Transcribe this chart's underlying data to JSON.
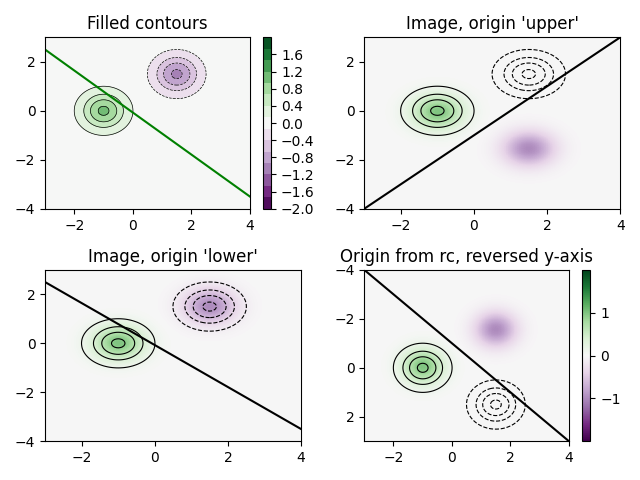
{
  "title_tl": "Filled contours",
  "title_tr": "Image, origin 'upper'",
  "title_bl": "Image, origin 'lower'",
  "title_br": "Origin from rc, reversed y-axis",
  "figsize": [
    6.4,
    4.8
  ],
  "dpi": 100,
  "xlim": [
    -3,
    4
  ],
  "ylim": [
    -4,
    4
  ],
  "cmap": "PRGn",
  "vmin": -2.0,
  "vmax": 2.0,
  "gaussian1_x": -1.0,
  "gaussian1_y": 0.0,
  "gaussian2_x": 1.5,
  "gaussian2_y": 1.5,
  "sigma": 0.5,
  "line_x": [
    -3,
    4
  ],
  "line_y": [
    2.5,
    -4
  ],
  "green_line_x": [
    -3,
    4
  ],
  "green_line_y": [
    2.5,
    -4
  ]
}
